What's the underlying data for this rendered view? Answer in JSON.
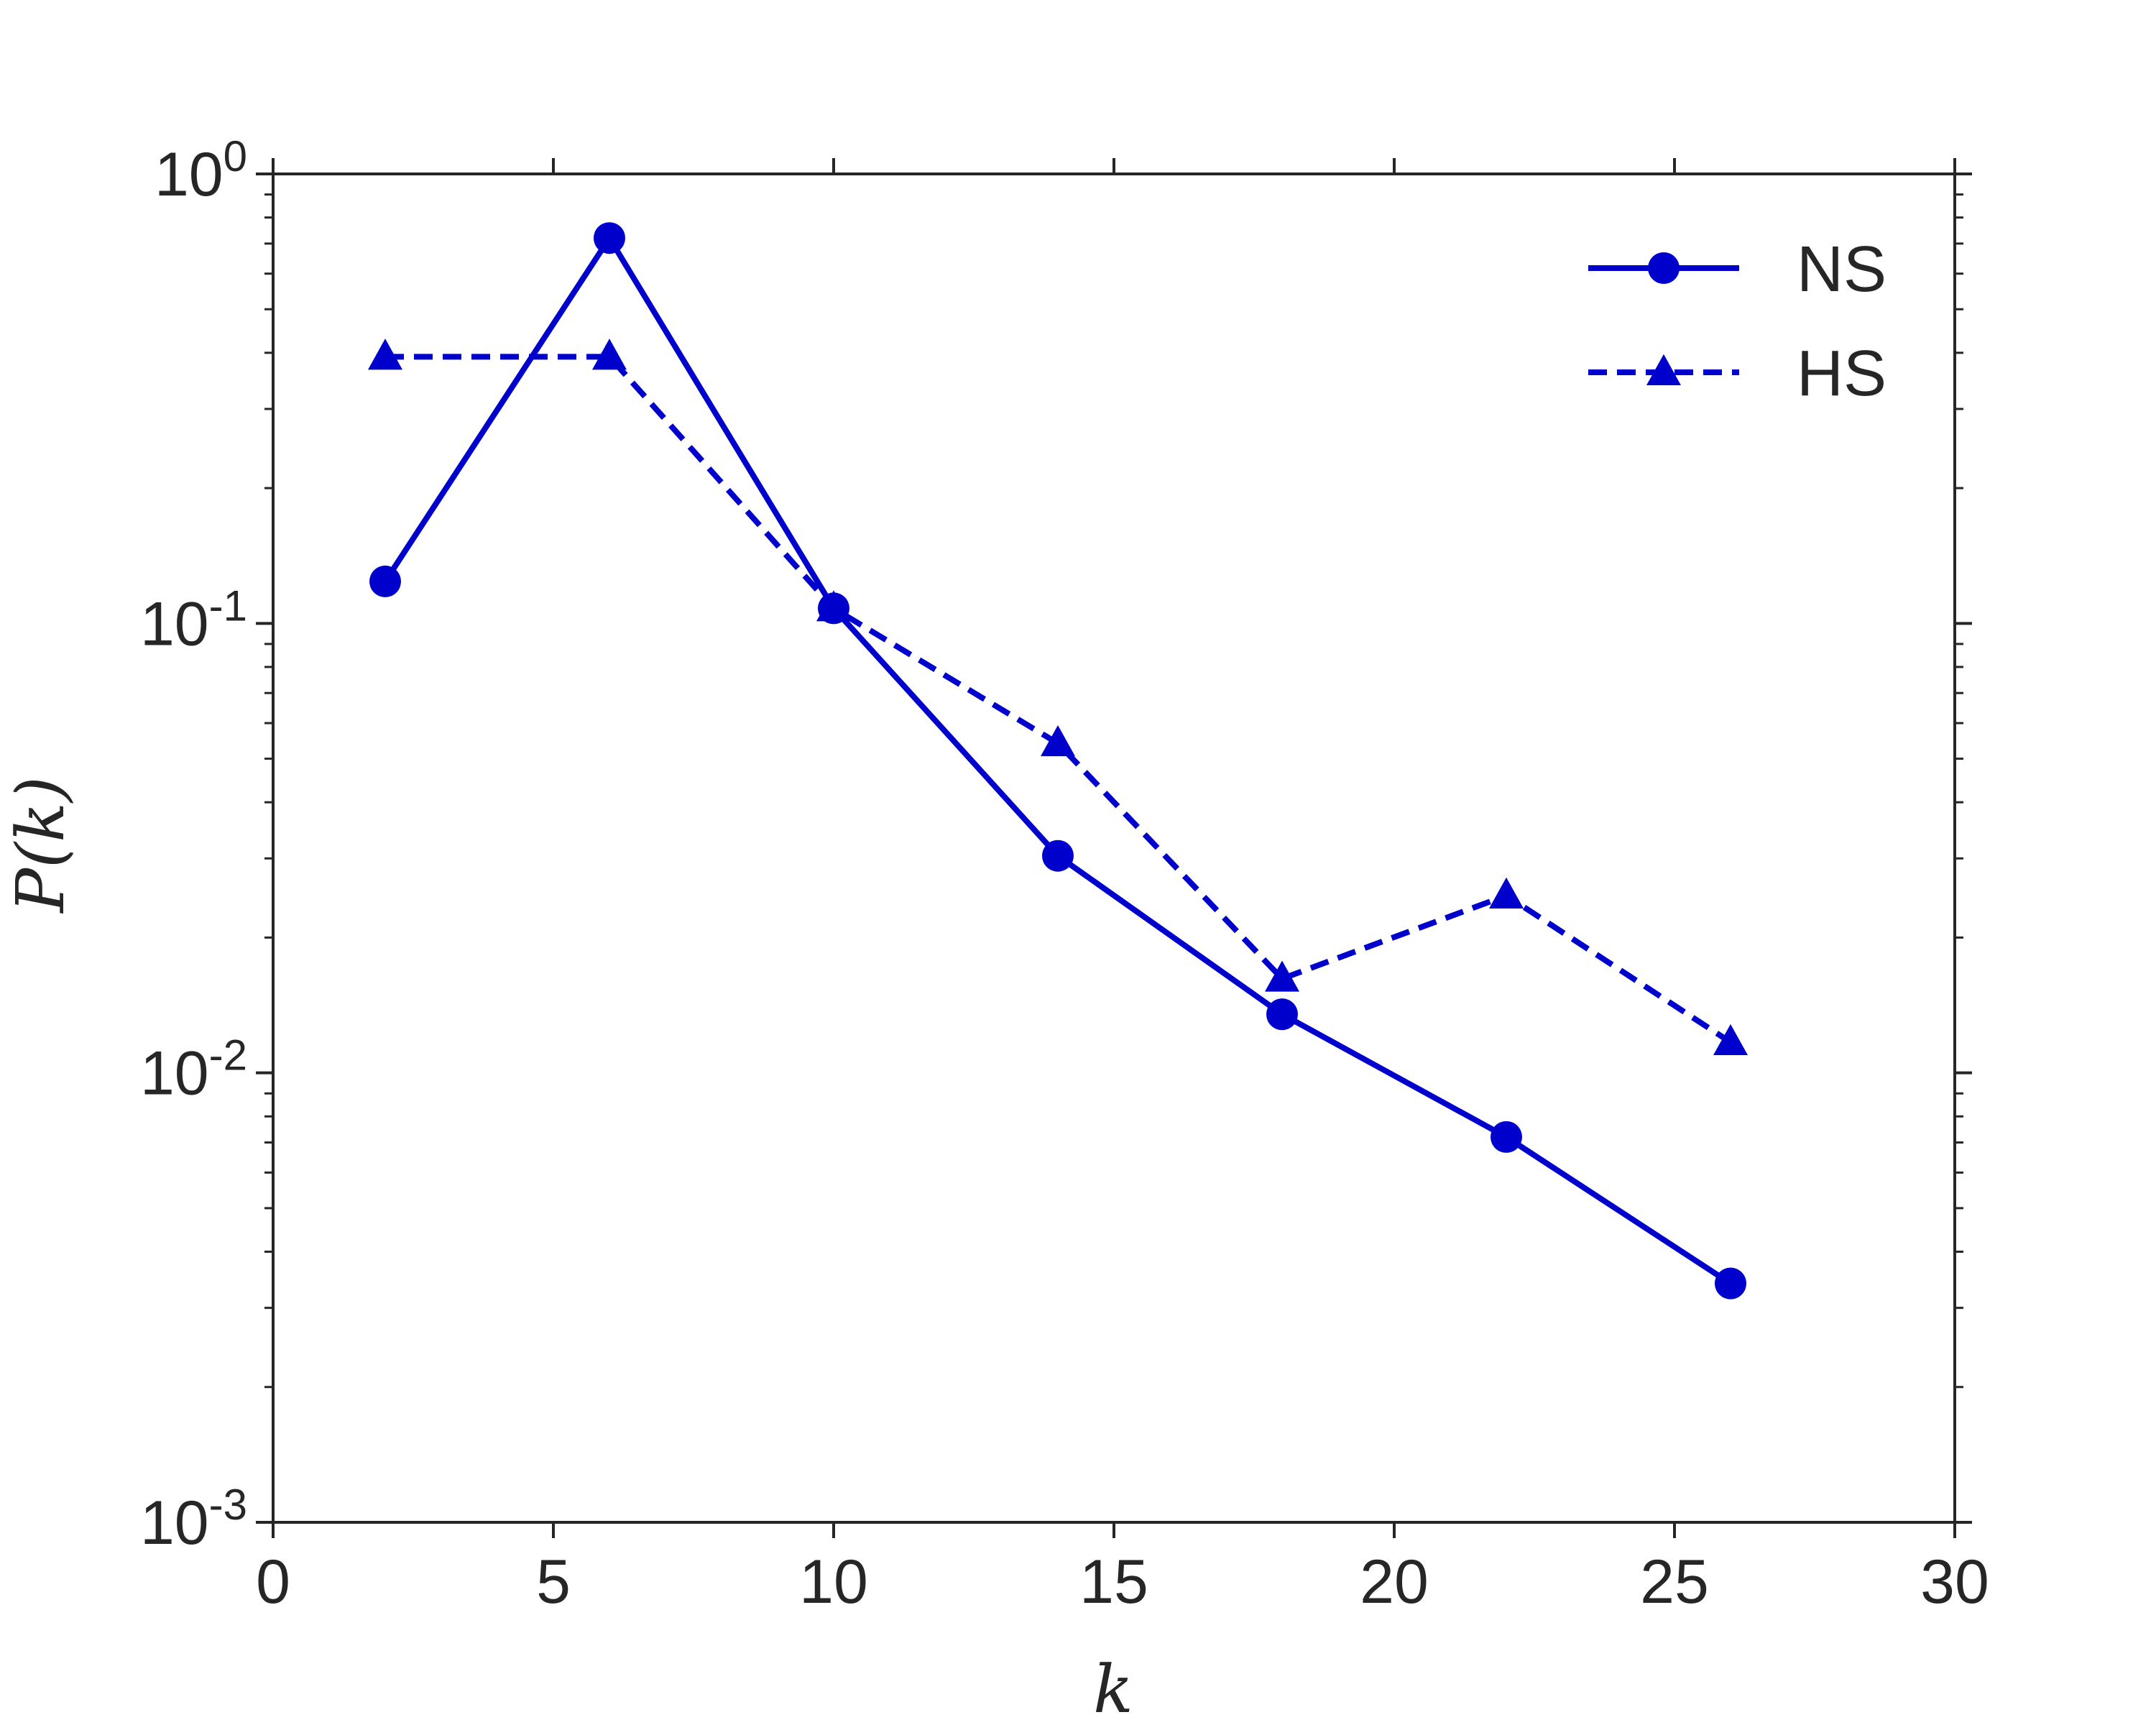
{
  "chart_data": {
    "type": "line",
    "xlabel": "k",
    "ylabel": "P(k)",
    "xlim": [
      0,
      30
    ],
    "ylim": [
      0.001,
      1
    ],
    "yscale": "log",
    "grid": false,
    "legend_position": "top-right",
    "x_ticks": [
      "0",
      "5",
      "10",
      "15",
      "20",
      "25",
      "30"
    ],
    "y_ticks": [
      {
        "base": "10",
        "exp": "0"
      },
      {
        "base": "10",
        "exp": "-1"
      },
      {
        "base": "10",
        "exp": "-2"
      },
      {
        "base": "10",
        "exp": "-3"
      }
    ],
    "series": [
      {
        "name": "NS",
        "marker": "circle",
        "line_style": "solid",
        "color": "#0000cc",
        "x": [
          2,
          6,
          10,
          14,
          18,
          22,
          26
        ],
        "y": [
          0.124,
          0.72,
          0.108,
          0.0304,
          0.0135,
          0.0072,
          0.0034
        ]
      },
      {
        "name": "HS",
        "marker": "triangle",
        "line_style": "dashed",
        "color": "#0000cc",
        "x": [
          2,
          6,
          10,
          14,
          18,
          22,
          26
        ],
        "y": [
          0.392,
          0.392,
          0.108,
          0.0541,
          0.0162,
          0.0248,
          0.0117
        ]
      }
    ]
  }
}
